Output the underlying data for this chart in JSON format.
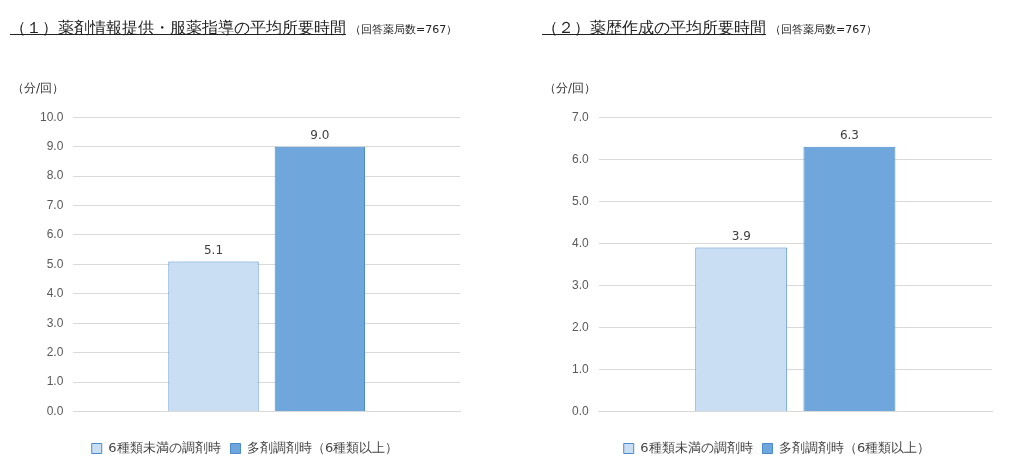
{
  "chart_data": [
    {
      "type": "bar",
      "title": "（１）薬剤情報提供・服薬指導の平均所要時間",
      "subtitle": "（回答薬局数=767）",
      "ylabel": "（分/回）",
      "categories": [
        null
      ],
      "series": [
        {
          "name": "6種類未満の調剤時",
          "color": "#c9def2",
          "values": [
            5.1
          ],
          "value_labels": [
            "5.1"
          ]
        },
        {
          "name": "多剤調剤時（6種類以上）",
          "color": "#6fa6dc",
          "values": [
            9.0
          ],
          "value_labels": [
            "9.0"
          ]
        }
      ],
      "ylim": [
        0,
        10
      ],
      "yticks": [
        {
          "value": 0,
          "label": "0.0"
        },
        {
          "value": 1,
          "label": "1.0"
        },
        {
          "value": 2,
          "label": "2.0"
        },
        {
          "value": 3,
          "label": "3.0"
        },
        {
          "value": 4,
          "label": "4.0"
        },
        {
          "value": 5,
          "label": "5.0"
        },
        {
          "value": 6,
          "label": "6.0"
        },
        {
          "value": 7,
          "label": "7.0"
        },
        {
          "value": 8,
          "label": "8.0"
        },
        {
          "value": 9,
          "label": "9.0"
        },
        {
          "value": 10,
          "label": "10.0"
        }
      ],
      "grid": "y",
      "legend": "bottom"
    },
    {
      "type": "bar",
      "title": "（２）薬歴作成の平均所要時間",
      "subtitle": "（回答薬局数=767）",
      "ylabel": "（分/回）",
      "categories": [
        null
      ],
      "series": [
        {
          "name": "6種類未満の調剤時",
          "color": "#c9def2",
          "values": [
            3.9
          ],
          "value_labels": [
            "3.9"
          ]
        },
        {
          "name": "多剤調剤時（6種類以上）",
          "color": "#6fa6dc",
          "values": [
            6.3
          ],
          "value_labels": [
            "6.3"
          ]
        }
      ],
      "ylim": [
        0,
        7
      ],
      "yticks": [
        {
          "value": 0,
          "label": "0.0"
        },
        {
          "value": 1,
          "label": "1.0"
        },
        {
          "value": 2,
          "label": "2.0"
        },
        {
          "value": 3,
          "label": "3.0"
        },
        {
          "value": 4,
          "label": "4.0"
        },
        {
          "value": 5,
          "label": "5.0"
        },
        {
          "value": 6,
          "label": "6.0"
        },
        {
          "value": 7,
          "label": "7.0"
        }
      ],
      "grid": "y",
      "legend": "bottom"
    }
  ]
}
